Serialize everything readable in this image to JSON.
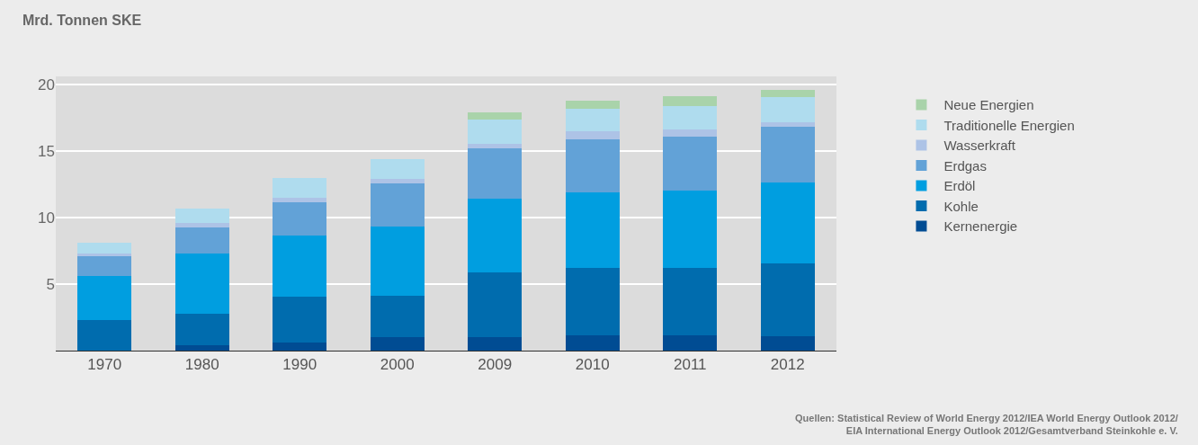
{
  "chart_data": {
    "type": "bar",
    "stacked": true,
    "ylabel": "Mrd. Tonnen SKE",
    "categories": [
      "1970",
      "1980",
      "1990",
      "2000",
      "2009",
      "2010",
      "2011",
      "2012"
    ],
    "series": [
      {
        "name": "Kernenergie",
        "color": "#004c93",
        "values": [
          null,
          0.4,
          0.6,
          1.0,
          1.0,
          1.15,
          1.15,
          1.1
        ]
      },
      {
        "name": "Kohle",
        "color": "#006cae",
        "values": [
          2.3,
          2.4,
          3.45,
          3.1,
          4.9,
          5.05,
          5.05,
          5.45
        ]
      },
      {
        "name": "Erdöl",
        "color": "#009ee0",
        "values": [
          3.3,
          4.5,
          4.6,
          5.2,
          5.5,
          5.7,
          5.85,
          6.05
        ]
      },
      {
        "name": "Erdgas",
        "color": "#62a2d7",
        "values": [
          1.5,
          1.95,
          2.5,
          3.25,
          3.8,
          4.0,
          4.0,
          4.2
        ]
      },
      {
        "name": "Wasserkraft",
        "color": "#adc3e6",
        "values": [
          0.2,
          0.35,
          0.35,
          0.35,
          0.35,
          0.55,
          0.55,
          0.35
        ]
      },
      {
        "name": "Traditionelle Energien",
        "color": "#afdcee",
        "values": [
          0.8,
          1.1,
          1.5,
          1.5,
          1.8,
          1.75,
          1.8,
          1.9
        ]
      },
      {
        "name": "Neue Energien",
        "color": "#a9d3aa",
        "values": [
          null,
          null,
          null,
          null,
          0.55,
          0.55,
          0.7,
          0.55
        ]
      }
    ],
    "ylim": [
      0,
      20.6
    ],
    "yticks": [
      5,
      10,
      15,
      20
    ],
    "grid": "y",
    "legend": "right",
    "annotations": [
      "Quellen: Statistical Review of World Energy 2012/IEA World Energy Outlook 2012/\nEIA International Energy Outlook 2012/Gesamtverband Steinkohle e. V."
    ]
  }
}
